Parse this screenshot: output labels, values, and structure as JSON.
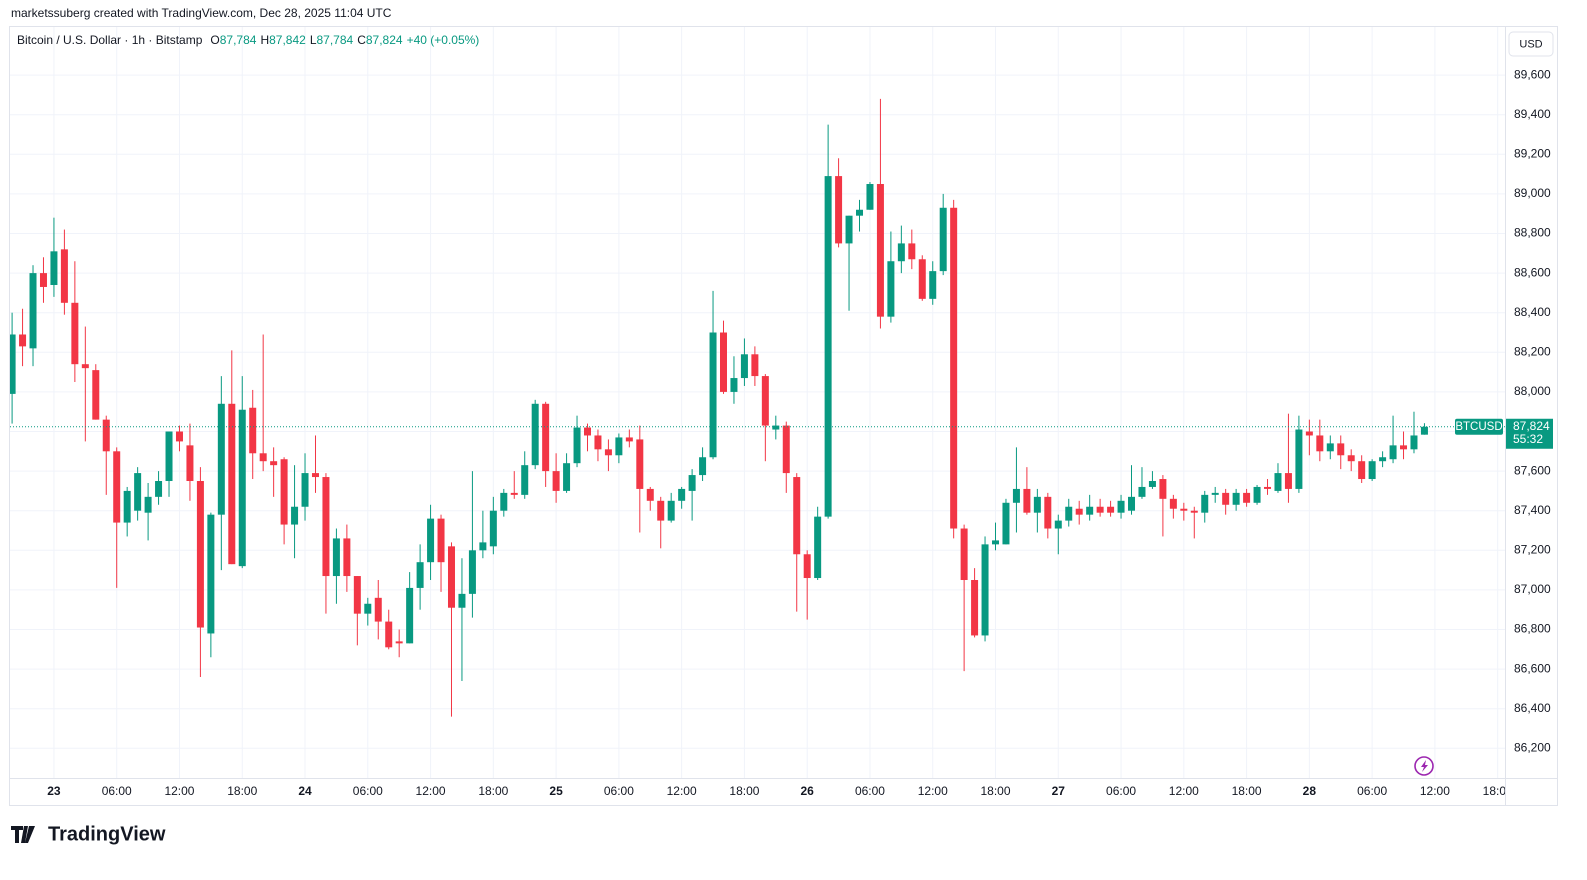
{
  "header": {
    "attribution": "marketssuberg created with TradingView.com, Dec 28, 2025 11:04 UTC"
  },
  "footer": {
    "logo": "TradingView"
  },
  "chart_data": {
    "type": "candlestick",
    "legend": {
      "title": "Bitcoin / U.S. Dollar · 1h · Bitstamp",
      "open_key": "O",
      "open": "87,784",
      "high_key": "H",
      "high": "87,842",
      "low_key": "L",
      "low": "87,784",
      "close_key": "C",
      "close": "87,824",
      "change": "+40 (+0.05%)"
    },
    "currency": "USD",
    "symbol": "BTCUSD",
    "last_price": {
      "value": 87824,
      "label": "87,824"
    },
    "countdown": "55:32",
    "up_color": "#089981",
    "down_color": "#f23645",
    "grid": true,
    "xlim": [
      -0.2,
      142.7
    ],
    "xticks": [
      {
        "value": 4,
        "label": "23"
      },
      {
        "value": 10,
        "label": "06:00"
      },
      {
        "value": 16,
        "label": "12:00"
      },
      {
        "value": 22,
        "label": "18:00"
      },
      {
        "value": 28,
        "label": "24"
      },
      {
        "value": 34,
        "label": "06:00"
      },
      {
        "value": 40,
        "label": "12:00"
      },
      {
        "value": 46,
        "label": "18:00"
      },
      {
        "value": 52,
        "label": "25"
      },
      {
        "value": 58,
        "label": "06:00"
      },
      {
        "value": 64,
        "label": "12:00"
      },
      {
        "value": 70,
        "label": "18:00"
      },
      {
        "value": 76,
        "label": "26"
      },
      {
        "value": 82,
        "label": "06:00"
      },
      {
        "value": 88,
        "label": "12:00"
      },
      {
        "value": 94,
        "label": "18:00"
      },
      {
        "value": 100,
        "label": "27"
      },
      {
        "value": 106,
        "label": "06:00"
      },
      {
        "value": 112,
        "label": "12:00"
      },
      {
        "value": 118,
        "label": "18:00"
      },
      {
        "value": 124,
        "label": "28"
      },
      {
        "value": 130,
        "label": "06:00"
      },
      {
        "value": 136,
        "label": "12:00"
      },
      {
        "value": 142,
        "label": "18:00"
      }
    ],
    "ylim": [
      86050,
      89843
    ],
    "yticks": [
      {
        "value": 86200,
        "label": "86,200"
      },
      {
        "value": 86400,
        "label": "86,400"
      },
      {
        "value": 86600,
        "label": "86,600"
      },
      {
        "value": 86800,
        "label": "86,800"
      },
      {
        "value": 87000,
        "label": "87,000"
      },
      {
        "value": 87200,
        "label": "87,200"
      },
      {
        "value": 87400,
        "label": "87,400"
      },
      {
        "value": 87600,
        "label": "87,600"
      },
      {
        "value": 87800,
        "label": "87,800"
      },
      {
        "value": 88000,
        "label": "88,000"
      },
      {
        "value": 88200,
        "label": "88,200"
      },
      {
        "value": 88400,
        "label": "88,400"
      },
      {
        "value": 88600,
        "label": "88,600"
      },
      {
        "value": 88800,
        "label": "88,800"
      },
      {
        "value": 89000,
        "label": "89,000"
      },
      {
        "value": 89200,
        "label": "89,200"
      },
      {
        "value": 89400,
        "label": "89,400"
      },
      {
        "value": 89600,
        "label": "89,600"
      }
    ],
    "open": [
      87990,
      88290,
      88220,
      88600,
      88540,
      88720,
      88450,
      88140,
      88110,
      87860,
      87700,
      87340,
      87400,
      87390,
      87470,
      87550,
      87800,
      87730,
      87550,
      86780,
      87380,
      87940,
      87120,
      87920,
      87690,
      87650,
      87660,
      87330,
      87420,
      87590,
      87570,
      87070,
      87260,
      87070,
      86880,
      86960,
      86840,
      86740,
      86730,
      87010,
      87140,
      87360,
      87220,
      86910,
      86980,
      87200,
      87220,
      87400,
      87490,
      87480,
      87630,
      87940,
      87600,
      87500,
      87640,
      87820,
      87780,
      87710,
      87680,
      87770,
      87760,
      87510,
      87450,
      87350,
      87450,
      87500,
      87580,
      87670,
      88300,
      88000,
      88070,
      88190,
      88080,
      87810,
      87830,
      87570,
      87180,
      87060,
      87370,
      89090,
      88750,
      88890,
      88920,
      89050,
      88380,
      88660,
      88750,
      88670,
      88470,
      88610,
      88930,
      87310,
      87050,
      86770,
      87230,
      87230,
      87440,
      87510,
      87390,
      87470,
      87310,
      87350,
      87410,
      87380,
      87420,
      87420,
      87390,
      87400,
      87470,
      87520,
      87560,
      87460,
      87410,
      87400,
      87390,
      87480,
      87490,
      87430,
      87490,
      87440,
      87520,
      87500,
      87590,
      87510,
      87800,
      87780,
      87700,
      87740,
      87680,
      87650,
      87560,
      87650,
      87660,
      87730,
      87710,
      87784
    ],
    "high": [
      88400,
      88420,
      88640,
      88680,
      88880,
      88820,
      88660,
      88330,
      88140,
      87880,
      87720,
      87520,
      87620,
      87540,
      87600,
      87800,
      87830,
      87840,
      87620,
      87390,
      88080,
      88210,
      88080,
      88010,
      88290,
      87720,
      87670,
      87630,
      87690,
      87780,
      87590,
      87310,
      87330,
      87070,
      86960,
      87050,
      86900,
      86800,
      87090,
      87230,
      87430,
      87380,
      87240,
      87160,
      87600,
      87400,
      87470,
      87510,
      87600,
      87700,
      87960,
      87950,
      87690,
      87690,
      87880,
      87840,
      87810,
      87760,
      87790,
      87810,
      87830,
      87520,
      87470,
      87490,
      87520,
      87610,
      87720,
      88510,
      88360,
      88180,
      88270,
      88230,
      88090,
      87880,
      87850,
      87590,
      87200,
      87420,
      89350,
      89180,
      88890,
      88970,
      89060,
      89480,
      88810,
      88840,
      88820,
      88690,
      88660,
      89000,
      88970,
      87330,
      87110,
      87270,
      87340,
      87460,
      87720,
      87620,
      87510,
      87490,
      87380,
      87460,
      87450,
      87480,
      87460,
      87450,
      87480,
      87630,
      87620,
      87600,
      87580,
      87480,
      87440,
      87420,
      87500,
      87520,
      87510,
      87510,
      87510,
      87530,
      87560,
      87640,
      87890,
      87880,
      87860,
      87860,
      87780,
      87780,
      87710,
      87680,
      87660,
      87700,
      87880,
      87800,
      87900,
      87842
    ],
    "low": [
      87840,
      88130,
      88130,
      88450,
      88480,
      88390,
      88050,
      87750,
      87860,
      87480,
      87010,
      87270,
      87350,
      87250,
      87430,
      87470,
      87700,
      87450,
      86560,
      86660,
      87100,
      87130,
      87110,
      87560,
      87600,
      87470,
      87230,
      87160,
      87350,
      87490,
      86880,
      86930,
      86990,
      86720,
      86820,
      86750,
      86700,
      86660,
      86730,
      86900,
      87050,
      86990,
      86360,
      86540,
      86860,
      87160,
      87180,
      87370,
      87460,
      87460,
      87610,
      87520,
      87440,
      87490,
      87620,
      87700,
      87650,
      87600,
      87640,
      87720,
      87290,
      87400,
      87210,
      87340,
      87410,
      87350,
      87550,
      87660,
      87990,
      87940,
      88030,
      88030,
      87650,
      87760,
      87490,
      86890,
      86850,
      87050,
      87360,
      88730,
      88410,
      88810,
      88920,
      88320,
      88350,
      88600,
      88620,
      88460,
      88440,
      88590,
      87260,
      86590,
      86760,
      86740,
      87200,
      87230,
      87290,
      87380,
      87290,
      87260,
      87180,
      87320,
      87330,
      87350,
      87370,
      87370,
      87360,
      87380,
      87460,
      87510,
      87270,
      87360,
      87350,
      87260,
      87340,
      87440,
      87380,
      87400,
      87420,
      87430,
      87480,
      87490,
      87440,
      87490,
      87680,
      87650,
      87660,
      87610,
      87600,
      87540,
      87550,
      87620,
      87640,
      87660,
      87690,
      87784
    ],
    "close": [
      88290,
      88230,
      88600,
      88530,
      88710,
      88450,
      88140,
      88120,
      87860,
      87700,
      87340,
      87500,
      87590,
      87470,
      87550,
      87800,
      87750,
      87550,
      86810,
      87380,
      87940,
      87130,
      87910,
      87690,
      87650,
      87630,
      87330,
      87420,
      87590,
      87570,
      87070,
      87260,
      87070,
      86880,
      86930,
      86840,
      86710,
      86730,
      87010,
      87140,
      87360,
      87140,
      86910,
      86980,
      87200,
      87240,
      87400,
      87490,
      87480,
      87630,
      87940,
      87600,
      87500,
      87640,
      87820,
      87780,
      87710,
      87680,
      87770,
      87750,
      87510,
      87450,
      87350,
      87450,
      87510,
      87580,
      87670,
      88300,
      88000,
      88070,
      88190,
      88080,
      87830,
      87830,
      87590,
      87180,
      87060,
      87370,
      89090,
      88750,
      88890,
      88920,
      89050,
      88380,
      88660,
      88750,
      88670,
      88470,
      88610,
      88930,
      87310,
      87050,
      86770,
      87230,
      87250,
      87440,
      87510,
      87390,
      87470,
      87310,
      87350,
      87420,
      87380,
      87420,
      87390,
      87390,
      87450,
      87470,
      87520,
      87550,
      87460,
      87410,
      87400,
      87390,
      87480,
      87490,
      87430,
      87490,
      87440,
      87520,
      87510,
      87590,
      87510,
      87810,
      87780,
      87700,
      87740,
      87680,
      87650,
      87560,
      87650,
      87670,
      87730,
      87710,
      87780,
      87824
    ]
  }
}
